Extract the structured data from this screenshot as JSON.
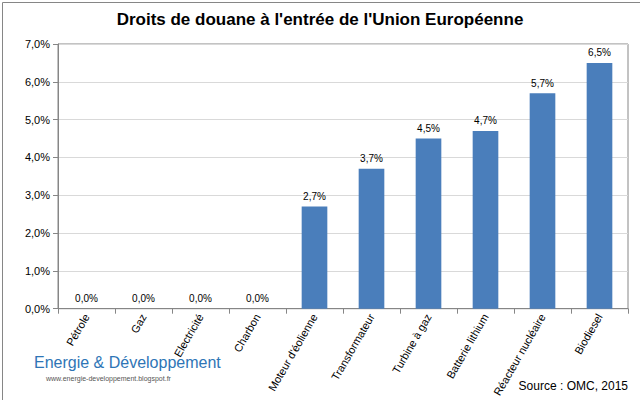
{
  "chart_data": {
    "type": "bar",
    "title": "Droits de douane à l'entrée de l'Union Européenne",
    "categories": [
      "Pétrole",
      "Gaz",
      "Electricité",
      "Charbon",
      "Moteur d'éolienne",
      "Transformateur",
      "Turbine à gaz",
      "Batterie lithium",
      "Réacteur nucléaire",
      "Biodiesel"
    ],
    "values": [
      0,
      0,
      0,
      0,
      2.7,
      3.7,
      4.5,
      4.7,
      5.7,
      6.5
    ],
    "value_labels": [
      "0,0%",
      "0,0%",
      "0,0%",
      "0,0%",
      "2,7%",
      "3,7%",
      "4,5%",
      "4,7%",
      "5,7%",
      "6,5%"
    ],
    "color": "#4a7ebb",
    "ylim": [
      0,
      7
    ],
    "yticks": [
      {
        "value": 0,
        "label": "0,0%"
      },
      {
        "value": 1,
        "label": "1,0%"
      },
      {
        "value": 2,
        "label": "2,0%"
      },
      {
        "value": 3,
        "label": "3,0%"
      },
      {
        "value": 4,
        "label": "4,0%"
      },
      {
        "value": 5,
        "label": "5,0%"
      },
      {
        "value": 6,
        "label": "6,0%"
      },
      {
        "value": 7,
        "label": "7,0%"
      }
    ],
    "grid": true,
    "data_labels": true,
    "annotations": [
      "Energie & Développement",
      "www.energie-developpement.blogspot.fr",
      "Source : OMC, 2015"
    ]
  }
}
